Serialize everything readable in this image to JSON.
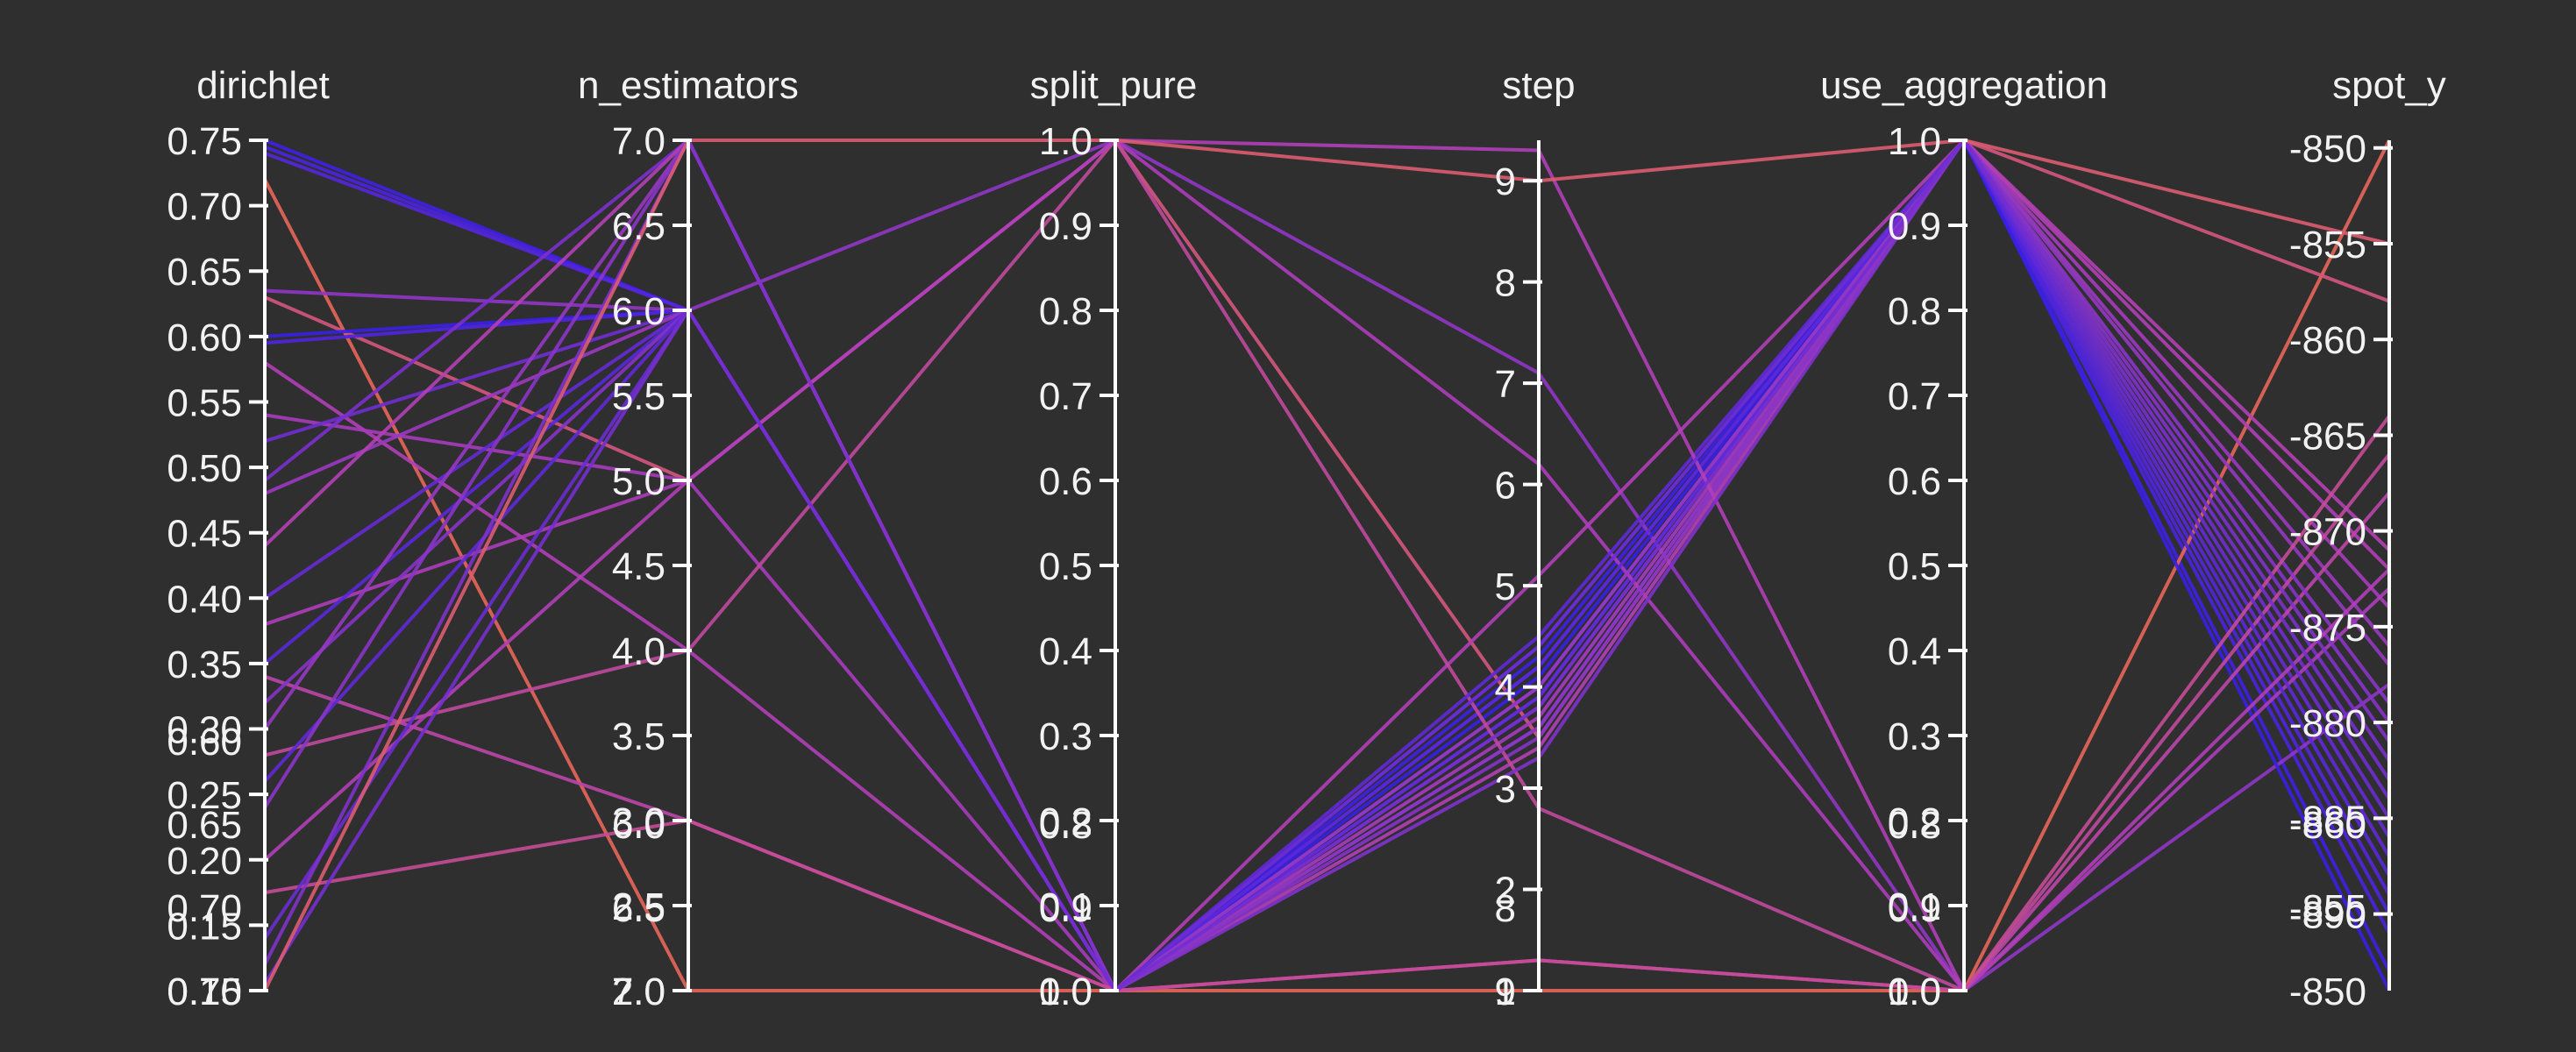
{
  "colors": {
    "background": "#2f2f2f",
    "axis": "#ffffff",
    "text": "#f2f2f2",
    "line_low": "#e8665a",
    "line_mid": "#b23fb8",
    "line_high": "#3a1fe6"
  },
  "chart_data": {
    "type": "parallel_coordinates",
    "axes": [
      {
        "name": "dirichlet",
        "range": [
          0.1,
          0.75
        ],
        "ticks": [
          "0.75",
          "0.70",
          "0.65",
          "0.60",
          "0.55",
          "0.50",
          "0.45",
          "0.40",
          "0.35",
          "0.30",
          "0.25",
          "0.20",
          "0.15",
          "0.10"
        ],
        "overlay_ticks": [
          "0.75",
          "0.70",
          "0.65",
          "0.60"
        ]
      },
      {
        "name": "n_estimators",
        "range": [
          2.0,
          7.0
        ],
        "ticks": [
          "7.0",
          "6.5",
          "6.0",
          "5.5",
          "5.0",
          "4.5",
          "4.0",
          "3.5",
          "3.0",
          "2.5",
          "2.0"
        ],
        "overlay_ticks": [
          "7.0",
          "6.5",
          "6.0"
        ]
      },
      {
        "name": "split_pure",
        "range": [
          0.0,
          1.0
        ],
        "ticks": [
          "1.0",
          "0.9",
          "0.8",
          "0.7",
          "0.6",
          "0.5",
          "0.4",
          "0.3",
          "0.2",
          "0.1",
          "0.0"
        ],
        "overlay_ticks": [
          "1.0",
          "0.9",
          "0.8"
        ]
      },
      {
        "name": "step",
        "range": [
          1,
          9.4
        ],
        "ticks": [
          "9",
          "8",
          "7",
          "6",
          "5",
          "4",
          "3",
          "2",
          "1"
        ],
        "overlay_ticks": [
          "9",
          "8"
        ]
      },
      {
        "name": "use_aggregation",
        "range": [
          0.0,
          1.0
        ],
        "ticks": [
          "1.0",
          "0.9",
          "0.8",
          "0.7",
          "0.6",
          "0.5",
          "0.4",
          "0.3",
          "0.2",
          "0.1",
          "0.0"
        ],
        "overlay_ticks": [
          "1.0",
          "0.9",
          "0.8"
        ]
      },
      {
        "name": "spot_y",
        "range": [
          -894,
          -849.6
        ],
        "ticks": [
          "-850",
          "-855",
          "-860",
          "-865",
          "-870",
          "-875",
          "-880",
          "-885",
          "-890"
        ],
        "overlay_ticks": [
          "-850",
          "-855",
          "-860"
        ]
      }
    ],
    "color_by": "spot_y",
    "lines": [
      [
        0.75,
        6.0,
        0.0,
        4.3,
        1.0,
        -893
      ],
      [
        0.745,
        6.0,
        0.0,
        4.2,
        1.0,
        -891
      ],
      [
        0.74,
        6.0,
        0.0,
        4.4,
        1.0,
        -889
      ],
      [
        0.72,
        2.0,
        0.0,
        1.0,
        0.0,
        -849.6
      ],
      [
        0.635,
        6.0,
        1.0,
        7.1,
        0.0,
        -878
      ],
      [
        0.63,
        5.0,
        1.0,
        3.5,
        1.0,
        -858
      ],
      [
        0.6,
        6.0,
        0.0,
        4.1,
        1.0,
        -894
      ],
      [
        0.595,
        6.0,
        0.0,
        3.9,
        1.0,
        -890
      ],
      [
        0.58,
        4.0,
        0.0,
        5.1,
        1.0,
        -872
      ],
      [
        0.54,
        5.0,
        0.0,
        3.7,
        1.0,
        -874
      ],
      [
        0.52,
        6.0,
        0.0,
        4.0,
        1.0,
        -884
      ],
      [
        0.49,
        7.0,
        0.0,
        3.8,
        1.0,
        -882
      ],
      [
        0.48,
        6.0,
        0.0,
        3.6,
        1.0,
        -876
      ],
      [
        0.44,
        7.0,
        0.0,
        3.4,
        1.0,
        -871
      ],
      [
        0.4,
        6.0,
        0.0,
        3.9,
        1.0,
        -886
      ],
      [
        0.38,
        5.0,
        1.0,
        6.2,
        0.0,
        -873
      ],
      [
        0.35,
        6.0,
        0.0,
        4.2,
        1.0,
        -888
      ],
      [
        0.34,
        3.0,
        0.0,
        1.3,
        0.0,
        -868
      ],
      [
        0.32,
        6.0,
        0.0,
        3.5,
        1.0,
        -880
      ],
      [
        0.3,
        7.0,
        0.0,
        4.0,
        1.0,
        -877
      ],
      [
        0.28,
        4.0,
        1.0,
        2.8,
        0.0,
        -866
      ],
      [
        0.26,
        6.0,
        0.0,
        4.5,
        1.0,
        -887
      ],
      [
        0.24,
        7.0,
        0.0,
        3.6,
        1.0,
        -879
      ],
      [
        0.2,
        5.0,
        1.0,
        9.3,
        0.0,
        -872
      ],
      [
        0.175,
        3.0,
        0.0,
        1.3,
        0.0,
        -864
      ],
      [
        0.14,
        6.0,
        0.0,
        4.4,
        1.0,
        -885
      ],
      [
        0.12,
        7.0,
        0.0,
        3.3,
        1.0,
        -881
      ],
      [
        0.105,
        6.0,
        0.0,
        3.8,
        1.0,
        -883
      ],
      [
        0.1,
        7.0,
        1.0,
        9.0,
        1.0,
        -855
      ]
    ]
  }
}
